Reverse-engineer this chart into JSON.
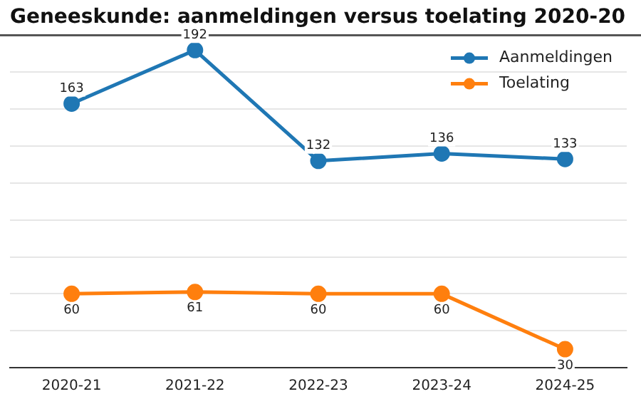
{
  "chart_data": {
    "type": "line",
    "title": "Geneeskunde: aanmeldingen versus toelating 2020-20",
    "categories": [
      "2020-21",
      "2021-22",
      "2022-23",
      "2023-24",
      "2024-25"
    ],
    "series": [
      {
        "name": "Aanmeldingen",
        "color": "#1f77b4",
        "values": [
          163,
          192,
          132,
          136,
          133
        ]
      },
      {
        "name": "Toelating",
        "color": "#ff7f0e",
        "values": [
          60,
          61,
          60,
          60,
          30
        ]
      }
    ],
    "ylim": [
      20,
      200
    ],
    "yticks": [
      {
        "value": 20,
        "label": null
      },
      {
        "value": 40,
        "label": null
      },
      {
        "value": 60,
        "label": null
      },
      {
        "value": 80,
        "label": null
      },
      {
        "value": 100,
        "label": null
      },
      {
        "value": 120,
        "label": null
      },
      {
        "value": 140,
        "label": null
      },
      {
        "value": 160,
        "label": null
      },
      {
        "value": 180,
        "label": null
      },
      {
        "value": 200,
        "label": null
      }
    ],
    "grid": "y",
    "legend": "top right",
    "marker": "circle",
    "line_style": "solid",
    "tick_labels": "x",
    "data_labels": true
  }
}
